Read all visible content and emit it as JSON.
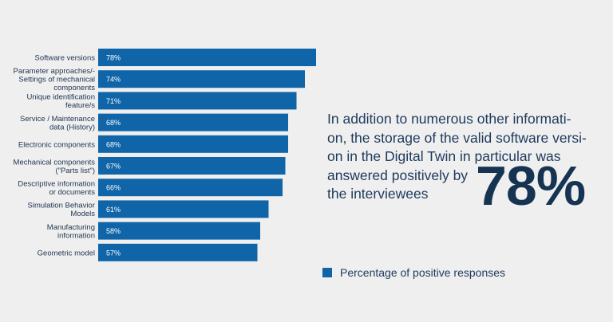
{
  "callout": {
    "text": "In addition to numerous other informati-\non, the storage of the valid software versi-\non in the Digital Twin in particular was\nanswered positively by\nthe interviewees",
    "highlight": "78%"
  },
  "colors": {
    "bar": "#0f65a8",
    "background": "#efefef",
    "text": "#1d3a5c"
  },
  "chart_data": {
    "type": "bar",
    "orientation": "horizontal",
    "categories": [
      [
        "Software versions"
      ],
      [
        "Parameter approaches/-",
        "Settings of mechanical",
        "components"
      ],
      [
        "Unique identification",
        "feature/s"
      ],
      [
        "Service / Maintenance",
        "data (History)"
      ],
      [
        "Electronic components"
      ],
      [
        "Mechanical components",
        "(\"Parts list\")"
      ],
      [
        "Descriptive information",
        "or documents"
      ],
      [
        "Simulation Behavior",
        "Models"
      ],
      [
        "Manufacturing",
        "information"
      ],
      [
        "Geometric model"
      ]
    ],
    "series": [
      {
        "name": "Percentage of positive responses",
        "values": [
          78,
          74,
          71,
          68,
          68,
          67,
          66,
          61,
          58,
          57
        ],
        "labels": [
          "78%",
          "74%",
          "71%",
          "68%",
          "68%",
          "67%",
          "66%",
          "61%",
          "58%",
          "57%"
        ]
      }
    ],
    "xlim": [
      0,
      100
    ],
    "grid": false,
    "legend": "bottom-right"
  }
}
